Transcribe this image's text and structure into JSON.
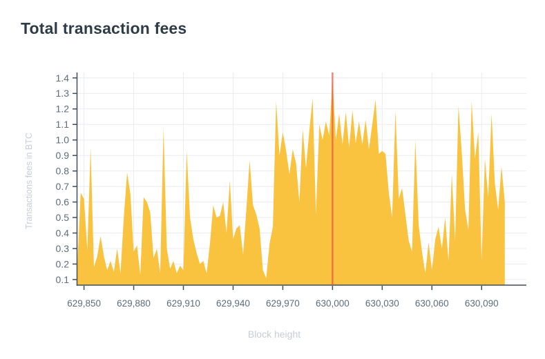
{
  "title": "Total transaction fees",
  "colors": {
    "background": "#ffffff",
    "title_text": "#2e3c49",
    "tick_text": "#5b6d7c",
    "muted_text": "#c5ced6",
    "grid": "#e9ebee",
    "axis": "#3f4c59",
    "area": "#f9be32",
    "marker": "#e74c3c"
  },
  "chart_data": {
    "type": "area",
    "title": "Total transaction fees",
    "xlabel": "Block height",
    "ylabel": "Transactions fees in BTC",
    "grid": true,
    "legend": "none",
    "x_domain": [
      629846,
      630117
    ],
    "y_domain": [
      0.064,
      1.435
    ],
    "x_ticks": [
      {
        "value": 629850,
        "label": "629,850"
      },
      {
        "value": 629880,
        "label": "629,880"
      },
      {
        "value": 629910,
        "label": "629,910"
      },
      {
        "value": 629940,
        "label": "629,940"
      },
      {
        "value": 629970,
        "label": "629,970"
      },
      {
        "value": 630000,
        "label": "630,000"
      },
      {
        "value": 630030,
        "label": "630,030"
      },
      {
        "value": 630060,
        "label": "630,060"
      },
      {
        "value": 630090,
        "label": "630,090"
      }
    ],
    "y_ticks": [
      {
        "value": 0.1,
        "label": "0.1"
      },
      {
        "value": 0.2,
        "label": "0.2"
      },
      {
        "value": 0.3,
        "label": "0.3"
      },
      {
        "value": 0.4,
        "label": "0.4"
      },
      {
        "value": 0.5,
        "label": "0.5"
      },
      {
        "value": 0.6,
        "label": "0.6"
      },
      {
        "value": 0.7,
        "label": "0.7"
      },
      {
        "value": 0.8,
        "label": "0.8"
      },
      {
        "value": 0.9,
        "label": "0.9"
      },
      {
        "value": 1.0,
        "label": "1.0"
      },
      {
        "value": 1.1,
        "label": "1.1"
      },
      {
        "value": 1.2,
        "label": "1.2"
      },
      {
        "value": 1.3,
        "label": "1.3"
      },
      {
        "value": 1.4,
        "label": "1.4"
      }
    ],
    "marker_line": {
      "x": 630000
    },
    "series": [
      {
        "name": "total-transaction-fees-btc",
        "x_start": 629846,
        "x_step": 2,
        "values": [
          0.2,
          0.66,
          0.62,
          0.29,
          0.95,
          0.18,
          0.25,
          0.38,
          0.25,
          0.16,
          0.22,
          0.15,
          0.3,
          0.14,
          0.5,
          0.79,
          0.65,
          0.28,
          0.32,
          0.13,
          0.63,
          0.6,
          0.53,
          0.24,
          0.3,
          0.14,
          1.08,
          0.3,
          0.17,
          0.22,
          0.14,
          0.19,
          0.16,
          0.93,
          0.5,
          0.36,
          0.27,
          0.2,
          0.22,
          0.14,
          0.33,
          0.58,
          0.5,
          0.51,
          0.6,
          0.4,
          0.74,
          0.36,
          0.43,
          0.45,
          0.26,
          0.55,
          0.87,
          0.58,
          0.52,
          0.43,
          0.16,
          0.11,
          0.33,
          0.44,
          1.25,
          0.9,
          1.05,
          0.93,
          0.78,
          0.94,
          0.85,
          0.6,
          1.07,
          0.82,
          1.06,
          1.27,
          0.52,
          1.1,
          1.0,
          1.12,
          1.03,
          1.39,
          1.0,
          1.17,
          0.97,
          1.18,
          0.95,
          1.19,
          0.98,
          1.12,
          0.97,
          1.13,
          0.94,
          1.1,
          1.26,
          0.91,
          0.93,
          0.91,
          0.66,
          0.5,
          1.19,
          0.62,
          0.69,
          0.52,
          0.35,
          0.28,
          1.0,
          0.45,
          0.28,
          0.14,
          0.34,
          0.16,
          0.36,
          0.44,
          0.3,
          0.5,
          0.22,
          0.78,
          0.35,
          1.22,
          0.92,
          0.55,
          0.42,
          1.25,
          0.88,
          1.05,
          0.22,
          0.88,
          0.63,
          1.17,
          0.72,
          0.55,
          0.83,
          0.6
        ]
      }
    ]
  }
}
